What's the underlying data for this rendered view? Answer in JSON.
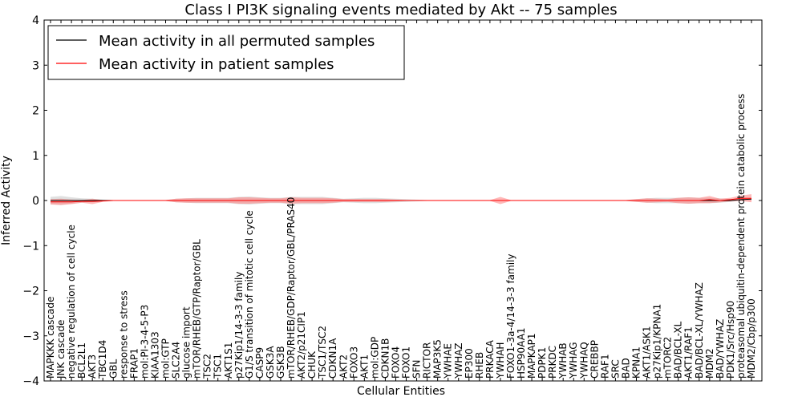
{
  "chart_data": {
    "type": "line",
    "title": "Class I PI3K signaling events mediated by Akt -- 75 samples",
    "xlabel": "Cellular Entities",
    "ylabel": "Inferred Activity",
    "ylim": [
      -4,
      4
    ],
    "yticks": [
      -4,
      -3,
      -2,
      -1,
      0,
      1,
      2,
      3,
      4
    ],
    "legend_position": "top-left",
    "categories": [
      "MAPKKK cascade",
      "JNK cascade",
      "negative regulation of cell cycle",
      "BCL2L1",
      "AKT3",
      "TBC1D4",
      "GBL",
      "response to stress",
      "FRAP1",
      "mol:PI-3-4-5-P3",
      "KIAA1303",
      "mol:GTP",
      "SLC2A4",
      "glucose import",
      "mTOR/RHEB/GTP/Raptor/GBL",
      "TSC2",
      "TSC1",
      "AKT1S1",
      "p27Kip1/14-3-3 family",
      "G1/S transition of mitotic cell cycle",
      "CASP9",
      "GSK3A",
      "GSK3B",
      "mTOR/RHEB/GDP/Raptor/GBL/PRAS40",
      "AKT2/p21CIP1",
      "CHUK",
      "TSC1/TSC2",
      "CDKN1A",
      "AKT2",
      "FOXO3",
      "AKT1",
      "mol:GDP",
      "CDKN1B",
      "FOXO4",
      "FOXO1",
      "SFN",
      "RICTOR",
      "MAP3K5",
      "YWHAE",
      "YWHAZ",
      "EP300",
      "RHEB",
      "PRKACA",
      "YWHAH",
      "FOXO1-3a-4/14-3-3 family",
      "HSP90AA1",
      "MAPKAP1",
      "PDPK1",
      "PRKDC",
      "YWHAB",
      "YWHAG",
      "YWHAQ",
      "CREBBP",
      "RAF1",
      "SRC",
      "BAD",
      "KPNA1",
      "AKT1/ASK1",
      "p27Kip1/KPNA1",
      "mTORC2",
      "BAD/BCL-XL",
      "AKT1/RAF1",
      "BAD/BCL-XL/YWHAZ",
      "MDM2",
      "BAD/YWHAZ",
      "PDK1/Src/Hsp90",
      "proteasomal ubiquitin-dependent protein catabolic process",
      "MDM2/Cbp/p300"
    ],
    "series": [
      {
        "name": "Mean activity in all permuted samples",
        "color": "#000000",
        "band_color": "#bbbbbb",
        "values": [
          0.0,
          0.0,
          0.0,
          0.0,
          0.0,
          0.0,
          0.0,
          0.0,
          0.0,
          0.0,
          0.0,
          0.0,
          0.0,
          0.0,
          0.0,
          0.0,
          0.0,
          0.0,
          0.0,
          0.0,
          0.0,
          0.0,
          0.0,
          0.0,
          0.0,
          0.0,
          0.0,
          0.0,
          0.0,
          0.0,
          0.0,
          0.0,
          0.0,
          0.0,
          0.0,
          0.0,
          0.0,
          0.0,
          0.0,
          0.0,
          0.0,
          0.0,
          0.0,
          0.0,
          0.0,
          0.0,
          0.0,
          0.0,
          0.0,
          0.0,
          0.0,
          0.0,
          0.0,
          0.0,
          0.0,
          0.0,
          0.0,
          0.0,
          0.0,
          0.0,
          0.0,
          0.0,
          0.0,
          0.0,
          0.0,
          0.0,
          0.02,
          0.03
        ],
        "spread": [
          0.08,
          0.1,
          0.07,
          0.05,
          0.04,
          0.02,
          0.01,
          0.01,
          0.01,
          0.01,
          0.01,
          0.01,
          0.04,
          0.05,
          0.06,
          0.06,
          0.06,
          0.06,
          0.08,
          0.09,
          0.07,
          0.06,
          0.06,
          0.08,
          0.08,
          0.08,
          0.08,
          0.06,
          0.04,
          0.05,
          0.06,
          0.06,
          0.05,
          0.04,
          0.03,
          0.02,
          0.01,
          0.01,
          0.01,
          0.01,
          0.01,
          0.01,
          0.01,
          0.01,
          0.01,
          0.01,
          0.01,
          0.01,
          0.01,
          0.01,
          0.01,
          0.01,
          0.01,
          0.01,
          0.01,
          0.01,
          0.03,
          0.05,
          0.06,
          0.06,
          0.06,
          0.07,
          0.06,
          0.06,
          0.05,
          0.03,
          0.03,
          0.03
        ]
      },
      {
        "name": "Mean activity in patient samples",
        "color": "#ff0000",
        "band_color": "#ff8080",
        "values": [
          -0.03,
          -0.03,
          -0.03,
          -0.02,
          -0.02,
          -0.01,
          0.0,
          0.0,
          0.0,
          0.0,
          0.0,
          0.0,
          0.0,
          0.0,
          0.0,
          0.0,
          0.0,
          0.0,
          0.0,
          0.0,
          0.0,
          0.0,
          0.0,
          0.0,
          0.0,
          0.0,
          0.0,
          0.0,
          0.0,
          0.0,
          0.0,
          0.0,
          0.0,
          0.0,
          0.0,
          0.0,
          0.0,
          0.0,
          0.0,
          0.0,
          0.0,
          0.0,
          0.0,
          0.0,
          0.0,
          0.0,
          0.0,
          0.0,
          0.0,
          0.0,
          0.0,
          0.0,
          0.0,
          0.0,
          0.0,
          0.0,
          0.0,
          0.0,
          0.0,
          0.0,
          0.0,
          0.0,
          0.0,
          0.02,
          0.0,
          0.02,
          0.05,
          0.05
        ],
        "spread": [
          0.06,
          0.07,
          0.05,
          0.03,
          0.06,
          0.02,
          0.01,
          0.01,
          0.01,
          0.01,
          0.01,
          0.01,
          0.04,
          0.05,
          0.05,
          0.05,
          0.05,
          0.05,
          0.07,
          0.07,
          0.06,
          0.05,
          0.05,
          0.07,
          0.06,
          0.06,
          0.06,
          0.05,
          0.03,
          0.03,
          0.03,
          0.03,
          0.03,
          0.02,
          0.01,
          0.01,
          0.01,
          0.01,
          0.01,
          0.01,
          0.01,
          0.01,
          0.01,
          0.08,
          0.01,
          0.01,
          0.01,
          0.01,
          0.01,
          0.01,
          0.01,
          0.01,
          0.01,
          0.01,
          0.01,
          0.01,
          0.03,
          0.05,
          0.04,
          0.03,
          0.06,
          0.07,
          0.06,
          0.08,
          0.04,
          0.04,
          0.06,
          0.09
        ]
      }
    ]
  }
}
